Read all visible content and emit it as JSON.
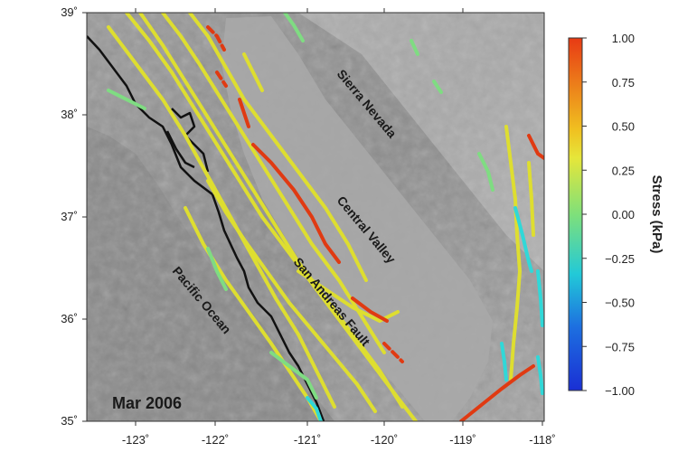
{
  "map": {
    "date_label": "Mar 2006",
    "place_labels": [
      "Sierra Nevada",
      "Central Valley",
      "San Andreas Fault",
      "Pacific Ocean"
    ],
    "lon_ticks": [
      "-123˚",
      "-122˚",
      "-121˚",
      "-120˚",
      "-119˚",
      "-118˚"
    ],
    "lat_ticks": [
      "39˚",
      "38˚",
      "37˚",
      "36˚",
      "35˚"
    ]
  },
  "colorbar": {
    "title": "Stress (kPa)",
    "ticks": [
      "1.00",
      "0.75",
      "0.50",
      "0.25",
      "0.00",
      "−0.25",
      "−0.50",
      "−0.75",
      "−1.00"
    ],
    "stops": [
      "#1a2fd4",
      "#1d6fe0",
      "#22c9d8",
      "#7fe07a",
      "#e6e63a",
      "#f0c020",
      "#e83a14"
    ]
  },
  "colors": {
    "fault_yellow": "#dede30",
    "fault_red": "#e03a12",
    "fault_green": "#7fdc82",
    "fault_cyan": "#30d8d8",
    "coast": "#111111"
  }
}
